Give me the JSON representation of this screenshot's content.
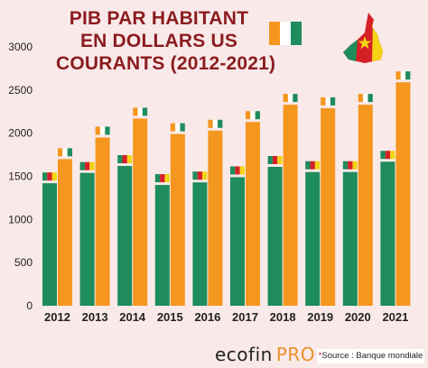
{
  "title_lines": [
    "PIB PAR HABITANT",
    "EN DOLLARS US",
    "COURANTS (2012-2021)"
  ],
  "brand": {
    "part1": "ecofin",
    "part2": "PRO"
  },
  "source": {
    "star": "*",
    "text": "Source : Banque mondiale"
  },
  "colors": {
    "cameroon_bar": "#1e8c5c",
    "cote_divoire_bar": "#f5961e",
    "flag_green": "#1e8c5c",
    "flag_red": "#d61f26",
    "flag_yellow": "#f4d313",
    "flag_orange": "#f5961e",
    "flag_white": "#ffffff",
    "text": "#222222",
    "background": "#f9e9e9"
  },
  "chart_data": {
    "type": "bar",
    "title": "PIB PAR HABITANT EN DOLLARS US COURANTS (2012-2021)",
    "categories": [
      "2012",
      "2013",
      "2014",
      "2015",
      "2016",
      "2017",
      "2018",
      "2019",
      "2020",
      "2021"
    ],
    "series": [
      {
        "values": [
          1420,
          1540,
          1620,
          1400,
          1430,
          1490,
          1610,
          1550,
          1550,
          1670
        ],
        "color": "#1e8c5c",
        "flag": "cameroon"
      },
      {
        "values": [
          1700,
          1950,
          2170,
          1990,
          2030,
          2130,
          2330,
          2290,
          2330,
          2590
        ],
        "color": "#f5961e",
        "flag": "cote-divoire"
      }
    ],
    "yticks": [
      0,
      500,
      1000,
      1500,
      2000,
      2500,
      3000
    ],
    "ylim": [
      0,
      3000
    ],
    "grid": false,
    "legend": "flags above bars"
  }
}
